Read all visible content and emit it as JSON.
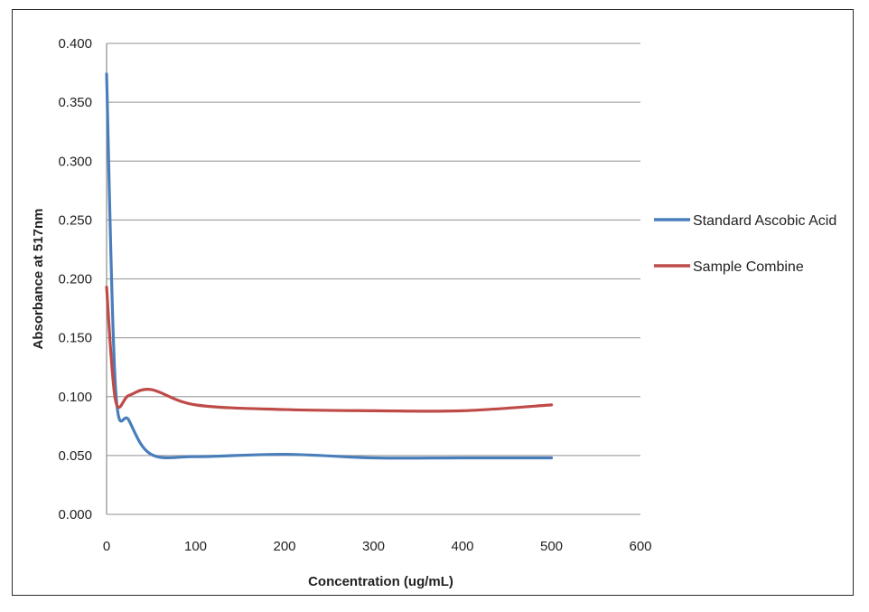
{
  "chart_data": {
    "type": "line",
    "title": "",
    "xlabel": "Concentration (ug/mL)",
    "ylabel": "Absorbance at 517nm",
    "xlim": [
      0,
      600
    ],
    "ylim": [
      0,
      0.4
    ],
    "x_ticks": [
      "0",
      "100",
      "200",
      "300",
      "400",
      "500",
      "600"
    ],
    "y_ticks": [
      "0.000",
      "0.050",
      "0.100",
      "0.150",
      "0.200",
      "0.250",
      "0.300",
      "0.350",
      "0.400"
    ],
    "grid": true,
    "legend_position": "right",
    "series": [
      {
        "name": "Standard Ascobic Acid",
        "color": "#4a7ebb",
        "x": [
          0,
          10,
          25,
          50,
          100,
          200,
          300,
          400,
          500
        ],
        "y": [
          0.374,
          0.108,
          0.08,
          0.051,
          0.049,
          0.051,
          0.048,
          0.048,
          0.048
        ]
      },
      {
        "name": "Sample Combine",
        "color": "#be4b48",
        "x": [
          0,
          10,
          25,
          50,
          100,
          200,
          300,
          400,
          500
        ],
        "y": [
          0.193,
          0.097,
          0.101,
          0.106,
          0.093,
          0.089,
          0.088,
          0.088,
          0.093
        ]
      }
    ]
  }
}
